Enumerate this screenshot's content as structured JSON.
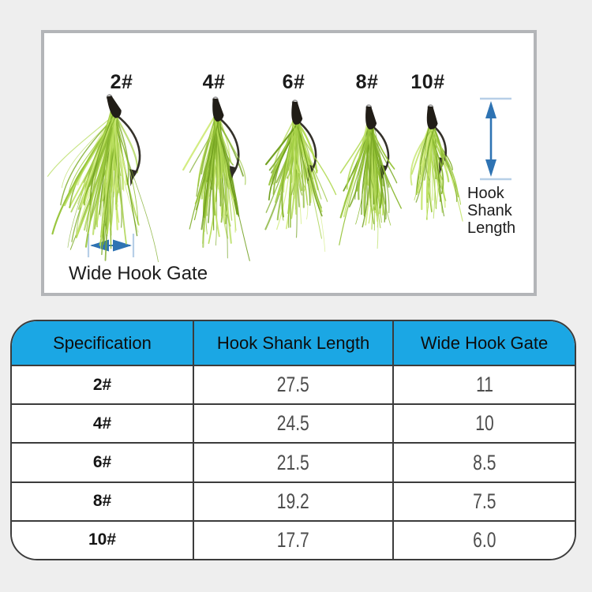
{
  "panel": {
    "size_labels": [
      "2#",
      "4#",
      "6#",
      "8#",
      "10#"
    ],
    "annotations": {
      "hook_shank_length": "Hook Shank Length",
      "wide_hook_gate": "Wide Hook Gate"
    }
  },
  "colors": {
    "arrow_blue": "#2e73b3",
    "arrow_cap_light_blue": "#b7cfe7",
    "table_header_blue": "#1ba7e4",
    "feather_green": "#8ab830",
    "page_background": "#eeeeee"
  },
  "table": {
    "headers": [
      "Specification",
      "Hook Shank Length",
      "Wide Hook Gate"
    ],
    "rows": [
      {
        "spec": "2#",
        "shank_length": "27.5",
        "hook_gate": "11"
      },
      {
        "spec": "4#",
        "shank_length": "24.5",
        "hook_gate": "10"
      },
      {
        "spec": "6#",
        "shank_length": "21.5",
        "hook_gate": "8.5"
      },
      {
        "spec": "8#",
        "shank_length": "19.2",
        "hook_gate": "7.5"
      },
      {
        "spec": "10#",
        "shank_length": "17.7",
        "hook_gate": "6.0"
      }
    ]
  },
  "chart_data": {
    "type": "table",
    "title": "Hook size specifications",
    "columns": [
      "Specification",
      "Hook Shank Length",
      "Wide Hook Gate"
    ],
    "rows": [
      [
        "2#",
        27.5,
        11
      ],
      [
        "4#",
        24.5,
        10
      ],
      [
        "6#",
        21.5,
        8.5
      ],
      [
        "8#",
        19.2,
        7.5
      ],
      [
        "10#",
        17.7,
        6.0
      ]
    ]
  }
}
